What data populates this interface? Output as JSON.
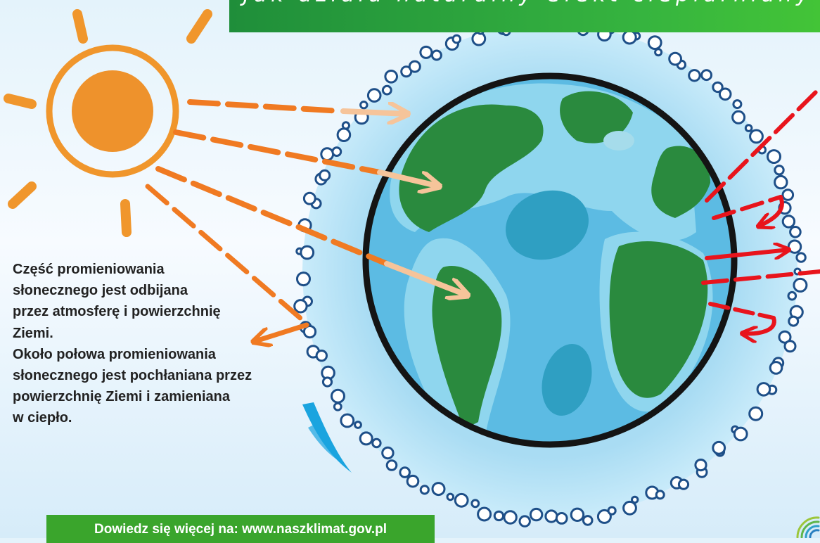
{
  "title": "Jak działa naturalny efekt cieplarniany",
  "paragraph_1": [
    "Część promieniowania",
    "słonecznego jest odbijana",
    "przez atmosferę i powierzchnię",
    "Ziemi."
  ],
  "paragraph_2": [
    "Około połowa promieniowania",
    "słonecznego jest pochłaniana przez",
    "powierzchnię Ziemi i zamieniana",
    "w ciepło."
  ],
  "footer": {
    "label": "Dowiedz się więcej na: www.naszklimat.gov.pl"
  },
  "colors": {
    "title_banner": "#2ea33a",
    "footer_banner": "#3aa52c",
    "sun": "#f0962c",
    "incoming_ray": "#f07a22",
    "outgoing_ray": "#e8141c",
    "atmosphere": "#b6e2f6",
    "ocean": "#5ab8e0",
    "land": "#2a8a3e"
  },
  "icons": [
    "sun-icon",
    "earth-illustration",
    "atmosphere-bubbles",
    "logo-icon"
  ]
}
